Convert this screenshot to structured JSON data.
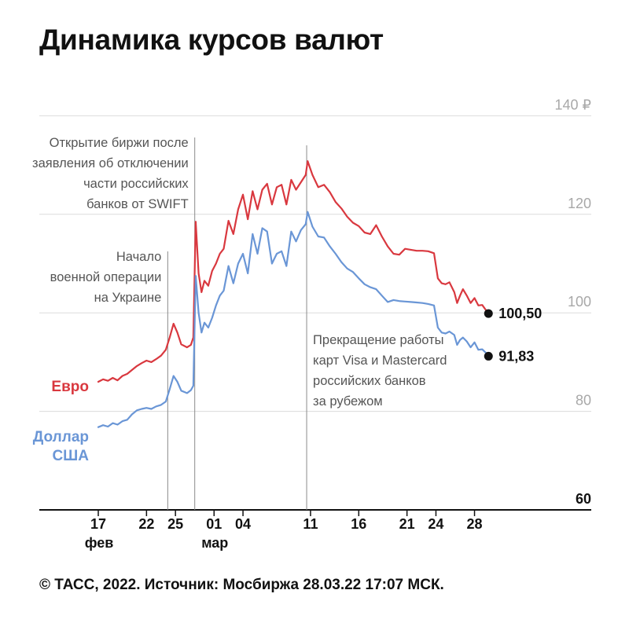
{
  "title": "Динамика курсов валют",
  "footer": "© ТАСС, 2022. Источник: Мосбиржа 28.03.22 17:07 МСК.",
  "chart_data": {
    "type": "line",
    "title": "Динамика курсов валют",
    "x_unit": "day index from 17 фев 2022",
    "ylim": [
      60,
      140
    ],
    "y_ticks": [
      {
        "value": 140,
        "label": "140 ₽"
      },
      {
        "value": 120,
        "label": "120"
      },
      {
        "value": 100,
        "label": "100"
      },
      {
        "value": 80,
        "label": "80"
      },
      {
        "value": 60,
        "label": "60"
      }
    ],
    "x_ticks": [
      {
        "day": 0,
        "label": "17",
        "sub": "фев"
      },
      {
        "day": 5,
        "label": "22",
        "sub": ""
      },
      {
        "day": 8,
        "label": "25",
        "sub": ""
      },
      {
        "day": 12,
        "label": "01",
        "sub": "мар"
      },
      {
        "day": 15,
        "label": "04",
        "sub": ""
      },
      {
        "day": 22,
        "label": "11",
        "sub": ""
      },
      {
        "day": 27,
        "label": "16",
        "sub": ""
      },
      {
        "day": 32,
        "label": "21",
        "sub": ""
      },
      {
        "day": 35,
        "label": "24",
        "sub": ""
      },
      {
        "day": 39,
        "label": "28",
        "sub": ""
      }
    ],
    "grid": true,
    "series": [
      {
        "name": "Евро",
        "color": "#d9383f",
        "end_label": "100,50",
        "points": [
          [
            0,
            86
          ],
          [
            0.5,
            86.5
          ],
          [
            1,
            86.2
          ],
          [
            1.5,
            86.8
          ],
          [
            2,
            86.3
          ],
          [
            2.5,
            87.2
          ],
          [
            3,
            87.6
          ],
          [
            3.5,
            88.4
          ],
          [
            4,
            89.2
          ],
          [
            4.5,
            89.8
          ],
          [
            5,
            90.3
          ],
          [
            5.5,
            90.0
          ],
          [
            6,
            90.6
          ],
          [
            6.5,
            91.3
          ],
          [
            7,
            92.5
          ],
          [
            7.4,
            95
          ],
          [
            7.8,
            97.8
          ],
          [
            8.2,
            96
          ],
          [
            8.6,
            93.6
          ],
          [
            9.2,
            93
          ],
          [
            9.6,
            93.5
          ],
          [
            9.85,
            95
          ],
          [
            10.1,
            118.5
          ],
          [
            10.4,
            108
          ],
          [
            10.7,
            104.2
          ],
          [
            11.0,
            106.5
          ],
          [
            11.4,
            105.5
          ],
          [
            11.8,
            108.5
          ],
          [
            12.2,
            110
          ],
          [
            12.6,
            112
          ],
          [
            13,
            113
          ],
          [
            13.5,
            118.7
          ],
          [
            14,
            116
          ],
          [
            14.5,
            121
          ],
          [
            15,
            124
          ],
          [
            15.5,
            119
          ],
          [
            16,
            124.7
          ],
          [
            16.5,
            121
          ],
          [
            17,
            125
          ],
          [
            17.5,
            126.2
          ],
          [
            18,
            122
          ],
          [
            18.5,
            125.5
          ],
          [
            19,
            126
          ],
          [
            19.5,
            122
          ],
          [
            20,
            127
          ],
          [
            20.5,
            125
          ],
          [
            21,
            126.5
          ],
          [
            21.5,
            128
          ],
          [
            21.7,
            130.8
          ],
          [
            22.2,
            128
          ],
          [
            22.8,
            125.5
          ],
          [
            23.4,
            126
          ],
          [
            24,
            124.5
          ],
          [
            24.6,
            122.5
          ],
          [
            25.2,
            121.2
          ],
          [
            25.8,
            119.5
          ],
          [
            26.4,
            118.3
          ],
          [
            27,
            117.6
          ],
          [
            27.6,
            116.3
          ],
          [
            28.2,
            116
          ],
          [
            28.8,
            117.8
          ],
          [
            29.4,
            115.5
          ],
          [
            30,
            113.5
          ],
          [
            30.6,
            112
          ],
          [
            31.2,
            111.8
          ],
          [
            31.8,
            113
          ],
          [
            32.4,
            112.8
          ],
          [
            33,
            112.6
          ],
          [
            33.6,
            112.6
          ],
          [
            34.2,
            112.5
          ],
          [
            34.8,
            112.1
          ],
          [
            35.2,
            107
          ],
          [
            35.6,
            106
          ],
          [
            36,
            105.8
          ],
          [
            36.4,
            106.2
          ],
          [
            36.9,
            104.2
          ],
          [
            37.2,
            102
          ],
          [
            37.5,
            103.5
          ],
          [
            37.8,
            104.8
          ],
          [
            38.2,
            103.5
          ],
          [
            38.6,
            102
          ],
          [
            39,
            103
          ],
          [
            39.4,
            101.5
          ],
          [
            39.8,
            101.6
          ],
          [
            40.2,
            100.5
          ]
        ]
      },
      {
        "name": "Доллар США",
        "color": "#6a96d6",
        "end_label": "91,83",
        "points": [
          [
            0,
            76.8
          ],
          [
            0.5,
            77.2
          ],
          [
            1,
            76.9
          ],
          [
            1.5,
            77.6
          ],
          [
            2,
            77.3
          ],
          [
            2.5,
            78
          ],
          [
            3,
            78.3
          ],
          [
            3.5,
            79.4
          ],
          [
            4,
            80.2
          ],
          [
            4.5,
            80.5
          ],
          [
            5,
            80.7
          ],
          [
            5.5,
            80.5
          ],
          [
            6,
            81
          ],
          [
            6.5,
            81.3
          ],
          [
            7,
            82
          ],
          [
            7.4,
            84.5
          ],
          [
            7.8,
            87.2
          ],
          [
            8.2,
            86
          ],
          [
            8.6,
            84.2
          ],
          [
            9.2,
            83.7
          ],
          [
            9.6,
            84.3
          ],
          [
            9.85,
            85.2
          ],
          [
            10.1,
            107.5
          ],
          [
            10.4,
            100
          ],
          [
            10.7,
            96
          ],
          [
            11.0,
            98
          ],
          [
            11.4,
            97
          ],
          [
            11.8,
            99
          ],
          [
            12.2,
            101.5
          ],
          [
            12.6,
            103.5
          ],
          [
            13,
            104.5
          ],
          [
            13.5,
            109.5
          ],
          [
            14,
            106
          ],
          [
            14.5,
            110
          ],
          [
            15,
            112
          ],
          [
            15.5,
            108
          ],
          [
            16,
            116
          ],
          [
            16.5,
            112
          ],
          [
            17,
            117.2
          ],
          [
            17.5,
            116.5
          ],
          [
            18,
            110
          ],
          [
            18.5,
            112
          ],
          [
            19,
            112.5
          ],
          [
            19.5,
            109.5
          ],
          [
            20,
            116.5
          ],
          [
            20.5,
            114.5
          ],
          [
            21,
            116.8
          ],
          [
            21.5,
            118
          ],
          [
            21.7,
            120.5
          ],
          [
            22.2,
            117.5
          ],
          [
            22.8,
            115.5
          ],
          [
            23.4,
            115.3
          ],
          [
            24,
            113.5
          ],
          [
            24.6,
            112
          ],
          [
            25.2,
            110.3
          ],
          [
            25.8,
            109
          ],
          [
            26.4,
            108.3
          ],
          [
            27,
            107
          ],
          [
            27.6,
            105.8
          ],
          [
            28.2,
            105.2
          ],
          [
            28.8,
            104.8
          ],
          [
            29.4,
            103.5
          ],
          [
            30,
            102.2
          ],
          [
            30.6,
            102.6
          ],
          [
            31.2,
            102.4
          ],
          [
            31.8,
            102.3
          ],
          [
            32.4,
            102.2
          ],
          [
            33,
            102.1
          ],
          [
            33.6,
            102.0
          ],
          [
            34.2,
            101.8
          ],
          [
            34.8,
            101.5
          ],
          [
            35.2,
            97
          ],
          [
            35.6,
            96
          ],
          [
            36,
            95.8
          ],
          [
            36.4,
            96.2
          ],
          [
            36.9,
            95.5
          ],
          [
            37.2,
            93.5
          ],
          [
            37.5,
            94.5
          ],
          [
            37.8,
            95
          ],
          [
            38.2,
            94.2
          ],
          [
            38.6,
            93
          ],
          [
            39,
            94
          ],
          [
            39.4,
            92.5
          ],
          [
            39.8,
            92.6
          ],
          [
            40.2,
            91.83
          ]
        ]
      }
    ],
    "annotations": [
      {
        "day": 7.2,
        "lines": [
          "Начало",
          "военной операции",
          "на Украине"
        ]
      },
      {
        "day": 10.0,
        "lines": [
          "Открытие биржи после",
          "заявления об отключении",
          "части российских",
          "банков от SWIFT"
        ]
      },
      {
        "day": 21.6,
        "lines": [
          "Прекращение работы",
          "карт Visa и Mastercard",
          "российских банков",
          "за рубежом"
        ]
      }
    ]
  }
}
